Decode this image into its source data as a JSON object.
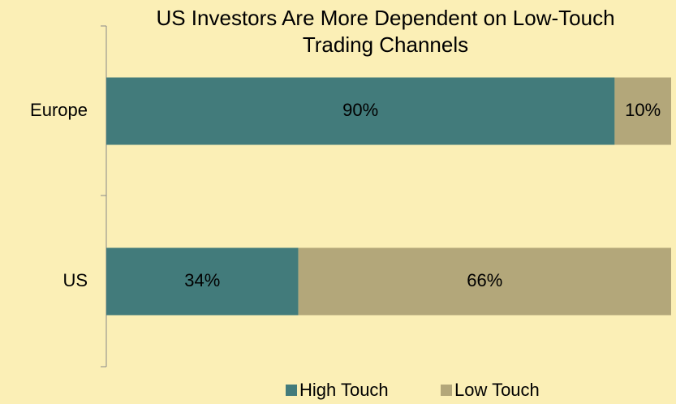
{
  "chart_data": {
    "type": "bar",
    "orientation": "horizontal",
    "stacked": true,
    "title": "US Investors Are More Dependent on Low-Touch Trading Channels",
    "categories": [
      "Europe",
      "US"
    ],
    "series": [
      {
        "name": "High Touch",
        "color": "#427b7b",
        "values": [
          90,
          34
        ],
        "value_labels": [
          "90%",
          "34%"
        ]
      },
      {
        "name": "Low Touch",
        "color": "#b3a77a",
        "values": [
          10,
          66
        ],
        "value_labels": [
          "10%",
          "66%"
        ]
      }
    ],
    "xlim": [
      0,
      100
    ],
    "legend": "bottom"
  }
}
